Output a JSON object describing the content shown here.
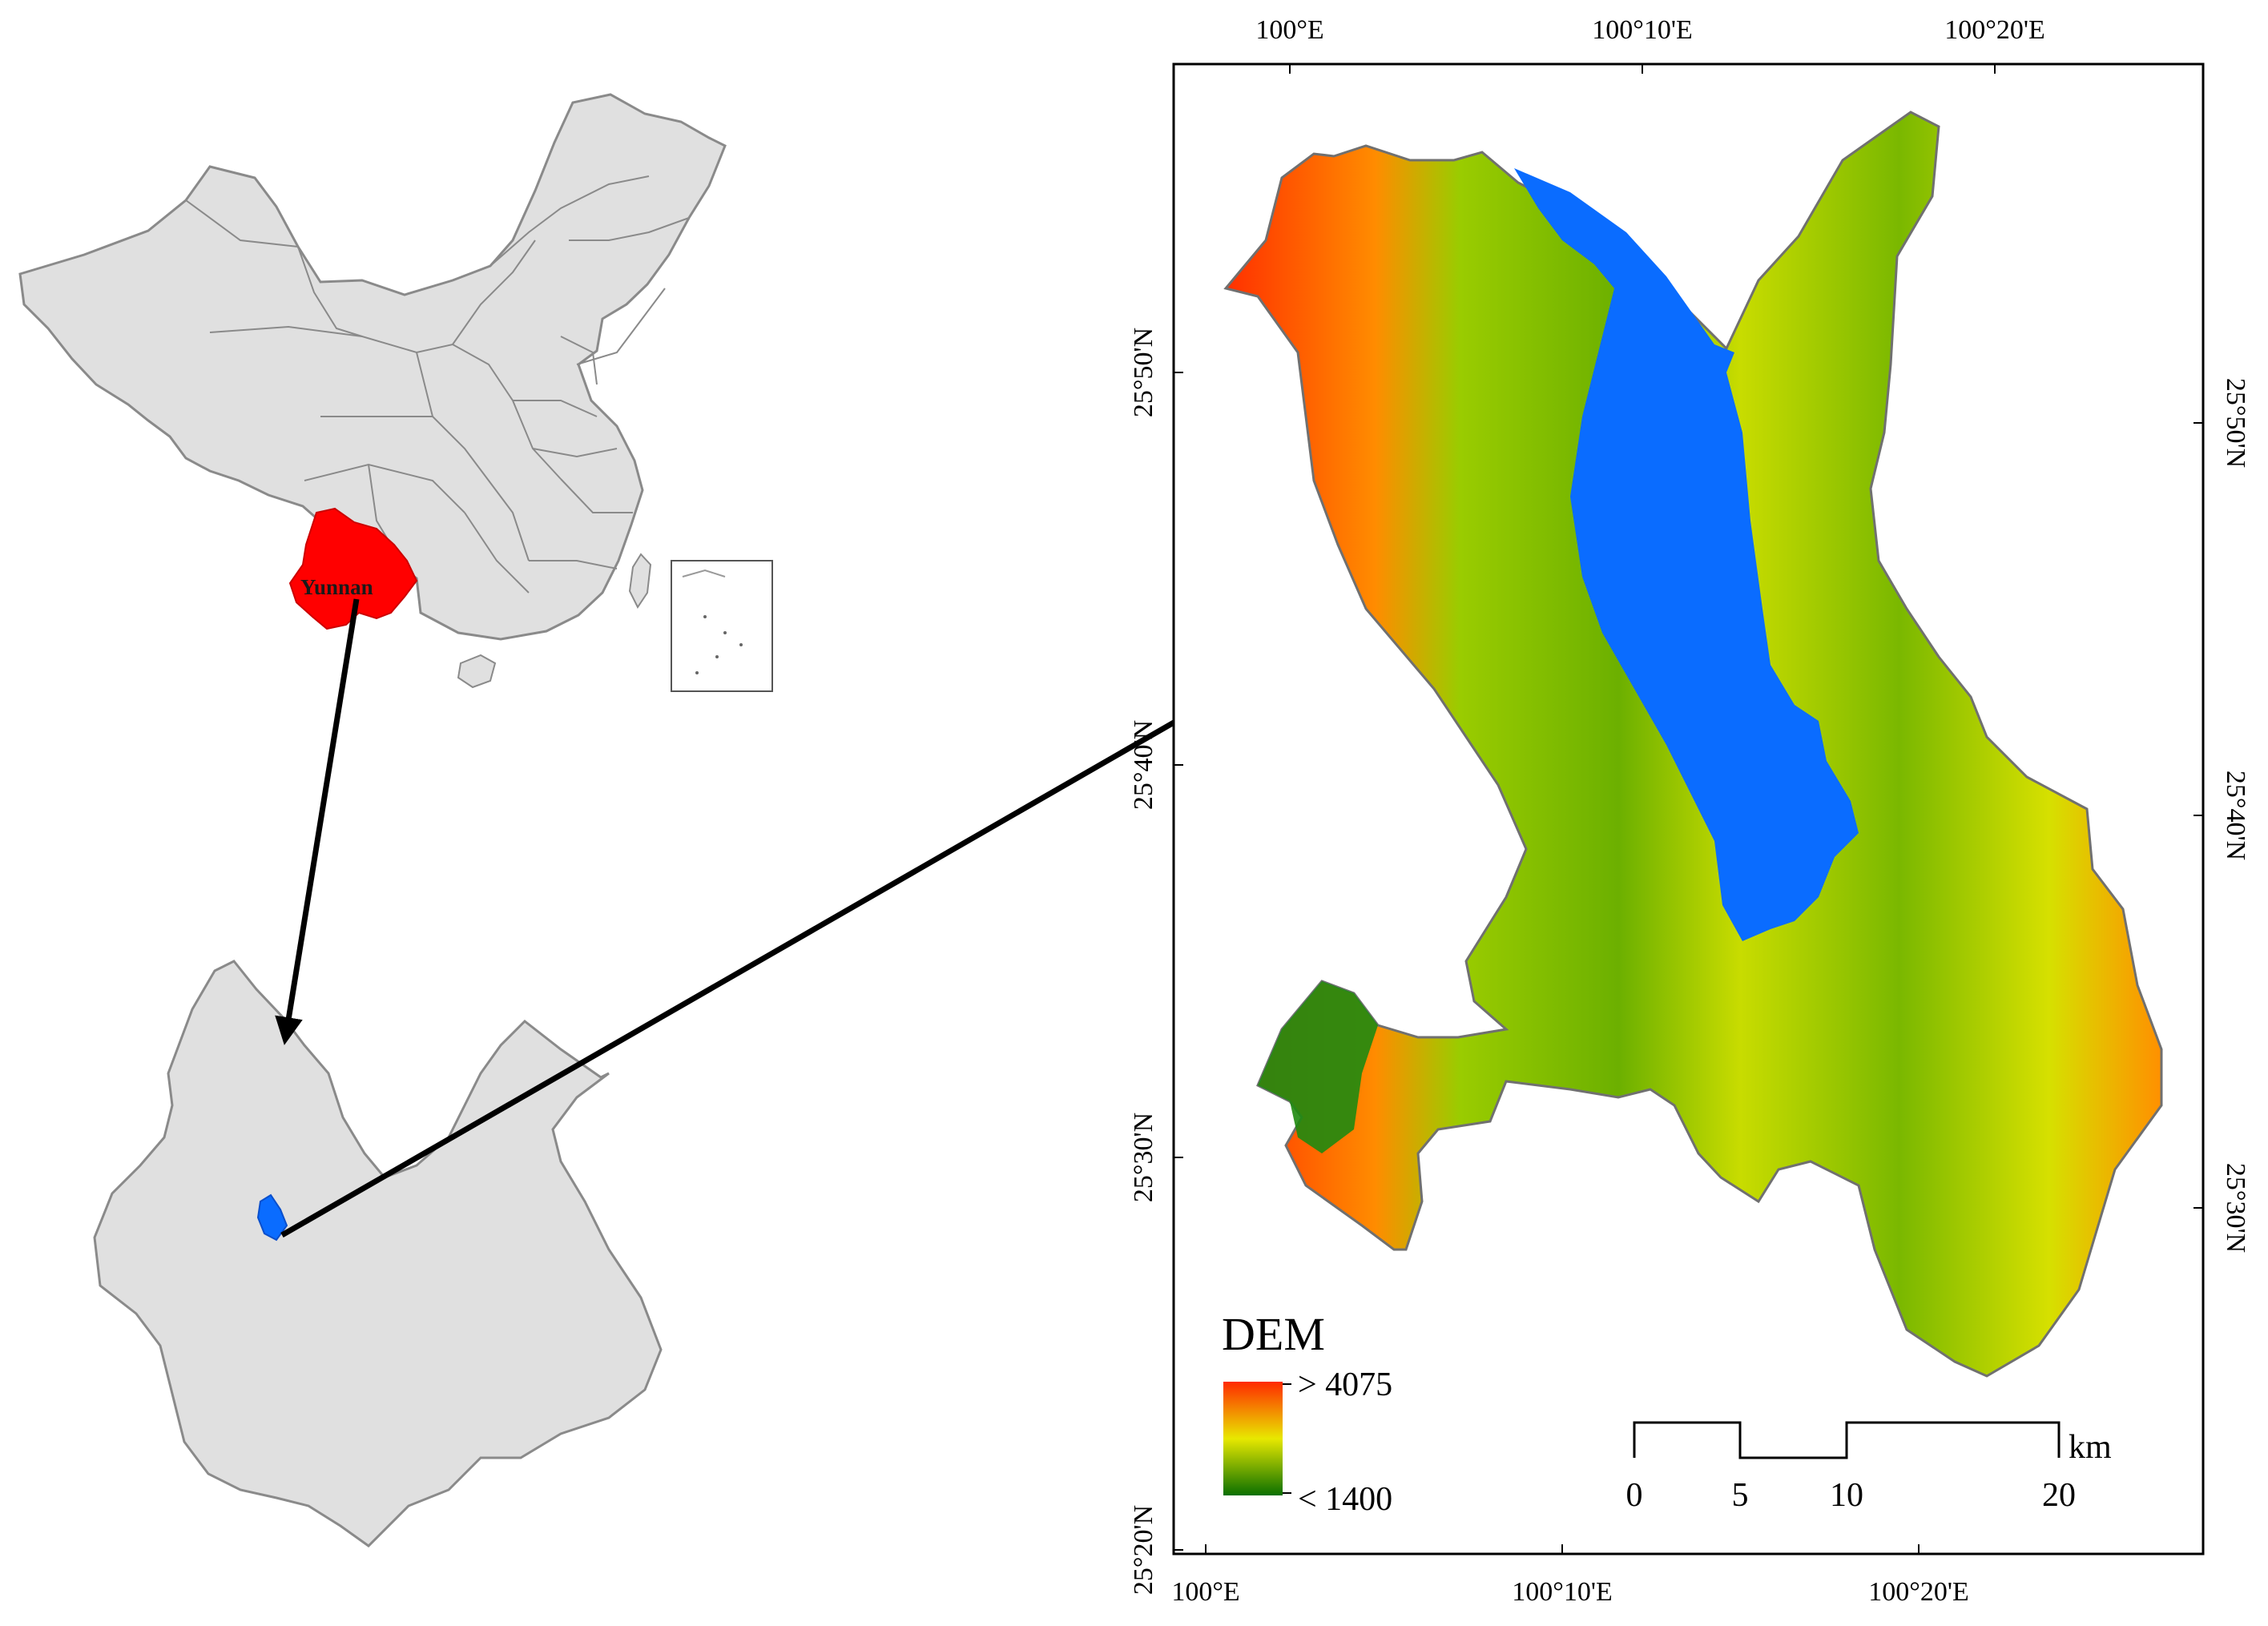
{
  "colors": {
    "province_fill": "#e0e0e0",
    "province_stroke": "#8a8a8a",
    "yunnan_highlight": "#ff0000",
    "study_area_highlight": "#0a6cff",
    "lake": "#0a6cff",
    "dem_high": "#ff2a00",
    "dem_mid": "#e8e800",
    "dem_low": "#0a6f00"
  },
  "china_inset": {
    "highlight_label": "Yunnan"
  },
  "dem_map": {
    "top_ticks": [
      "100°E",
      "100°10'E",
      "100°20'E"
    ],
    "bottom_ticks": [
      "100°E",
      "100°10'E",
      "100°20'E"
    ],
    "left_ticks": [
      "25°50'N",
      "25°40'N",
      "25°30'N",
      "25°20'N"
    ],
    "right_ticks": [
      "25°50'N",
      "25°40'N",
      "25°30'N"
    ]
  },
  "legend": {
    "title": "DEM",
    "high_label": "> 4075",
    "low_label": "< 1400"
  },
  "scale_bar": {
    "labels": [
      "0",
      "5",
      "10",
      "20"
    ],
    "unit": "km"
  }
}
